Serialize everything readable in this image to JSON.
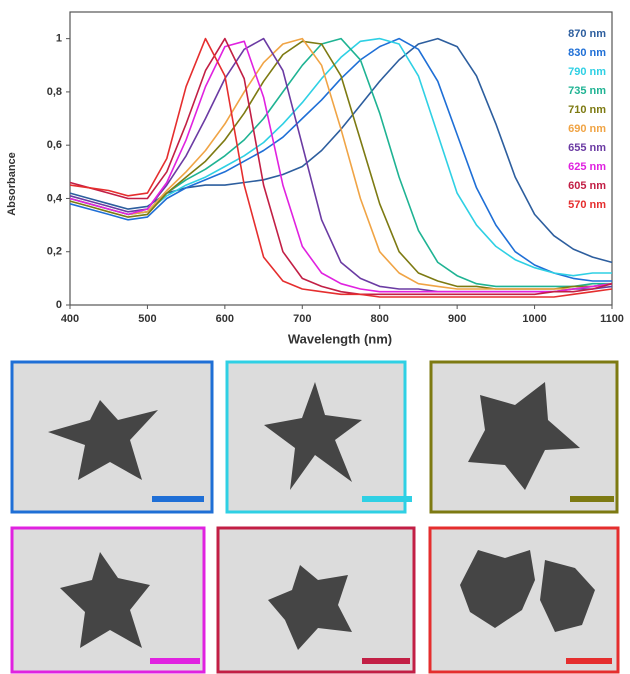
{
  "chart_data": {
    "type": "line",
    "x_label": "Wavelength (nm)",
    "y_label": "Absorbance",
    "xlim": [
      400,
      1100
    ],
    "ylim": [
      0,
      1.1
    ],
    "xticks": [
      400,
      500,
      600,
      700,
      800,
      900,
      1000,
      1100
    ],
    "yticks": [
      0,
      {
        "value": 0.2,
        "label": "0,2"
      },
      {
        "value": 0.4,
        "label": "0,4"
      },
      {
        "value": 0.6,
        "label": "0,6"
      },
      {
        "value": 0.8,
        "label": "0,8"
      },
      1
    ],
    "x": [
      400,
      425,
      450,
      475,
      500,
      525,
      550,
      575,
      600,
      625,
      650,
      675,
      700,
      725,
      750,
      775,
      800,
      825,
      850,
      875,
      900,
      925,
      950,
      975,
      1000,
      1025,
      1050,
      1075,
      1100
    ],
    "series": [
      {
        "name": "870 nm",
        "color": "#2d5e9e",
        "values": [
          0.42,
          0.4,
          0.38,
          0.36,
          0.37,
          0.42,
          0.44,
          0.45,
          0.45,
          0.46,
          0.47,
          0.49,
          0.52,
          0.58,
          0.66,
          0.75,
          0.84,
          0.92,
          0.98,
          1.0,
          0.97,
          0.86,
          0.68,
          0.48,
          0.34,
          0.26,
          0.21,
          0.18,
          0.16
        ]
      },
      {
        "name": "830 nm",
        "color": "#1f6fd6",
        "values": [
          0.38,
          0.36,
          0.34,
          0.32,
          0.33,
          0.4,
          0.44,
          0.47,
          0.5,
          0.54,
          0.58,
          0.63,
          0.7,
          0.77,
          0.85,
          0.92,
          0.97,
          1.0,
          0.96,
          0.84,
          0.64,
          0.44,
          0.3,
          0.2,
          0.15,
          0.12,
          0.1,
          0.09,
          0.09
        ]
      },
      {
        "name": "790 nm",
        "color": "#2fd0e4",
        "values": [
          0.4,
          0.38,
          0.36,
          0.34,
          0.35,
          0.41,
          0.45,
          0.48,
          0.52,
          0.56,
          0.61,
          0.68,
          0.76,
          0.85,
          0.93,
          0.99,
          1.0,
          0.98,
          0.86,
          0.64,
          0.42,
          0.3,
          0.22,
          0.17,
          0.14,
          0.12,
          0.11,
          0.12,
          0.12
        ]
      },
      {
        "name": "735 nm",
        "color": "#1fb393",
        "values": [
          0.4,
          0.38,
          0.36,
          0.34,
          0.35,
          0.42,
          0.47,
          0.51,
          0.56,
          0.62,
          0.7,
          0.8,
          0.9,
          0.98,
          1.0,
          0.92,
          0.72,
          0.48,
          0.28,
          0.16,
          0.11,
          0.08,
          0.07,
          0.07,
          0.07,
          0.07,
          0.07,
          0.08,
          0.08
        ]
      },
      {
        "name": "710 nm",
        "color": "#7d7a12",
        "values": [
          0.39,
          0.37,
          0.35,
          0.33,
          0.34,
          0.42,
          0.48,
          0.54,
          0.62,
          0.72,
          0.84,
          0.94,
          0.99,
          0.98,
          0.86,
          0.62,
          0.38,
          0.2,
          0.12,
          0.09,
          0.07,
          0.07,
          0.06,
          0.06,
          0.06,
          0.06,
          0.07,
          0.07,
          0.08
        ]
      },
      {
        "name": "690 nm",
        "color": "#f0a445",
        "values": [
          0.4,
          0.38,
          0.36,
          0.34,
          0.35,
          0.43,
          0.5,
          0.58,
          0.68,
          0.8,
          0.91,
          0.98,
          1.0,
          0.9,
          0.66,
          0.4,
          0.2,
          0.12,
          0.08,
          0.07,
          0.06,
          0.06,
          0.06,
          0.06,
          0.06,
          0.06,
          0.06,
          0.07,
          0.08
        ]
      },
      {
        "name": "655 nm",
        "color": "#6b3ba3",
        "values": [
          0.41,
          0.39,
          0.37,
          0.35,
          0.36,
          0.45,
          0.56,
          0.7,
          0.85,
          0.96,
          1.0,
          0.88,
          0.6,
          0.32,
          0.16,
          0.1,
          0.07,
          0.06,
          0.06,
          0.05,
          0.05,
          0.05,
          0.05,
          0.05,
          0.05,
          0.05,
          0.06,
          0.06,
          0.07
        ]
      },
      {
        "name": "625 nm",
        "color": "#e022e0",
        "values": [
          0.4,
          0.38,
          0.36,
          0.34,
          0.36,
          0.46,
          0.62,
          0.82,
          0.97,
          0.99,
          0.78,
          0.45,
          0.22,
          0.12,
          0.08,
          0.06,
          0.05,
          0.05,
          0.05,
          0.05,
          0.05,
          0.05,
          0.05,
          0.05,
          0.05,
          0.05,
          0.06,
          0.07,
          0.08
        ]
      },
      {
        "name": "605 nm",
        "color": "#c21f45",
        "values": [
          0.46,
          0.44,
          0.42,
          0.4,
          0.4,
          0.5,
          0.68,
          0.88,
          1.0,
          0.85,
          0.45,
          0.2,
          0.1,
          0.07,
          0.05,
          0.04,
          0.04,
          0.04,
          0.04,
          0.04,
          0.04,
          0.04,
          0.04,
          0.04,
          0.04,
          0.05,
          0.05,
          0.06,
          0.08
        ]
      },
      {
        "name": "570 nm",
        "color": "#e52e2e",
        "values": [
          0.45,
          0.44,
          0.43,
          0.41,
          0.42,
          0.55,
          0.82,
          1.0,
          0.86,
          0.45,
          0.18,
          0.09,
          0.06,
          0.05,
          0.04,
          0.04,
          0.03,
          0.03,
          0.03,
          0.03,
          0.03,
          0.03,
          0.03,
          0.03,
          0.03,
          0.03,
          0.04,
          0.05,
          0.06
        ]
      }
    ]
  }
}
